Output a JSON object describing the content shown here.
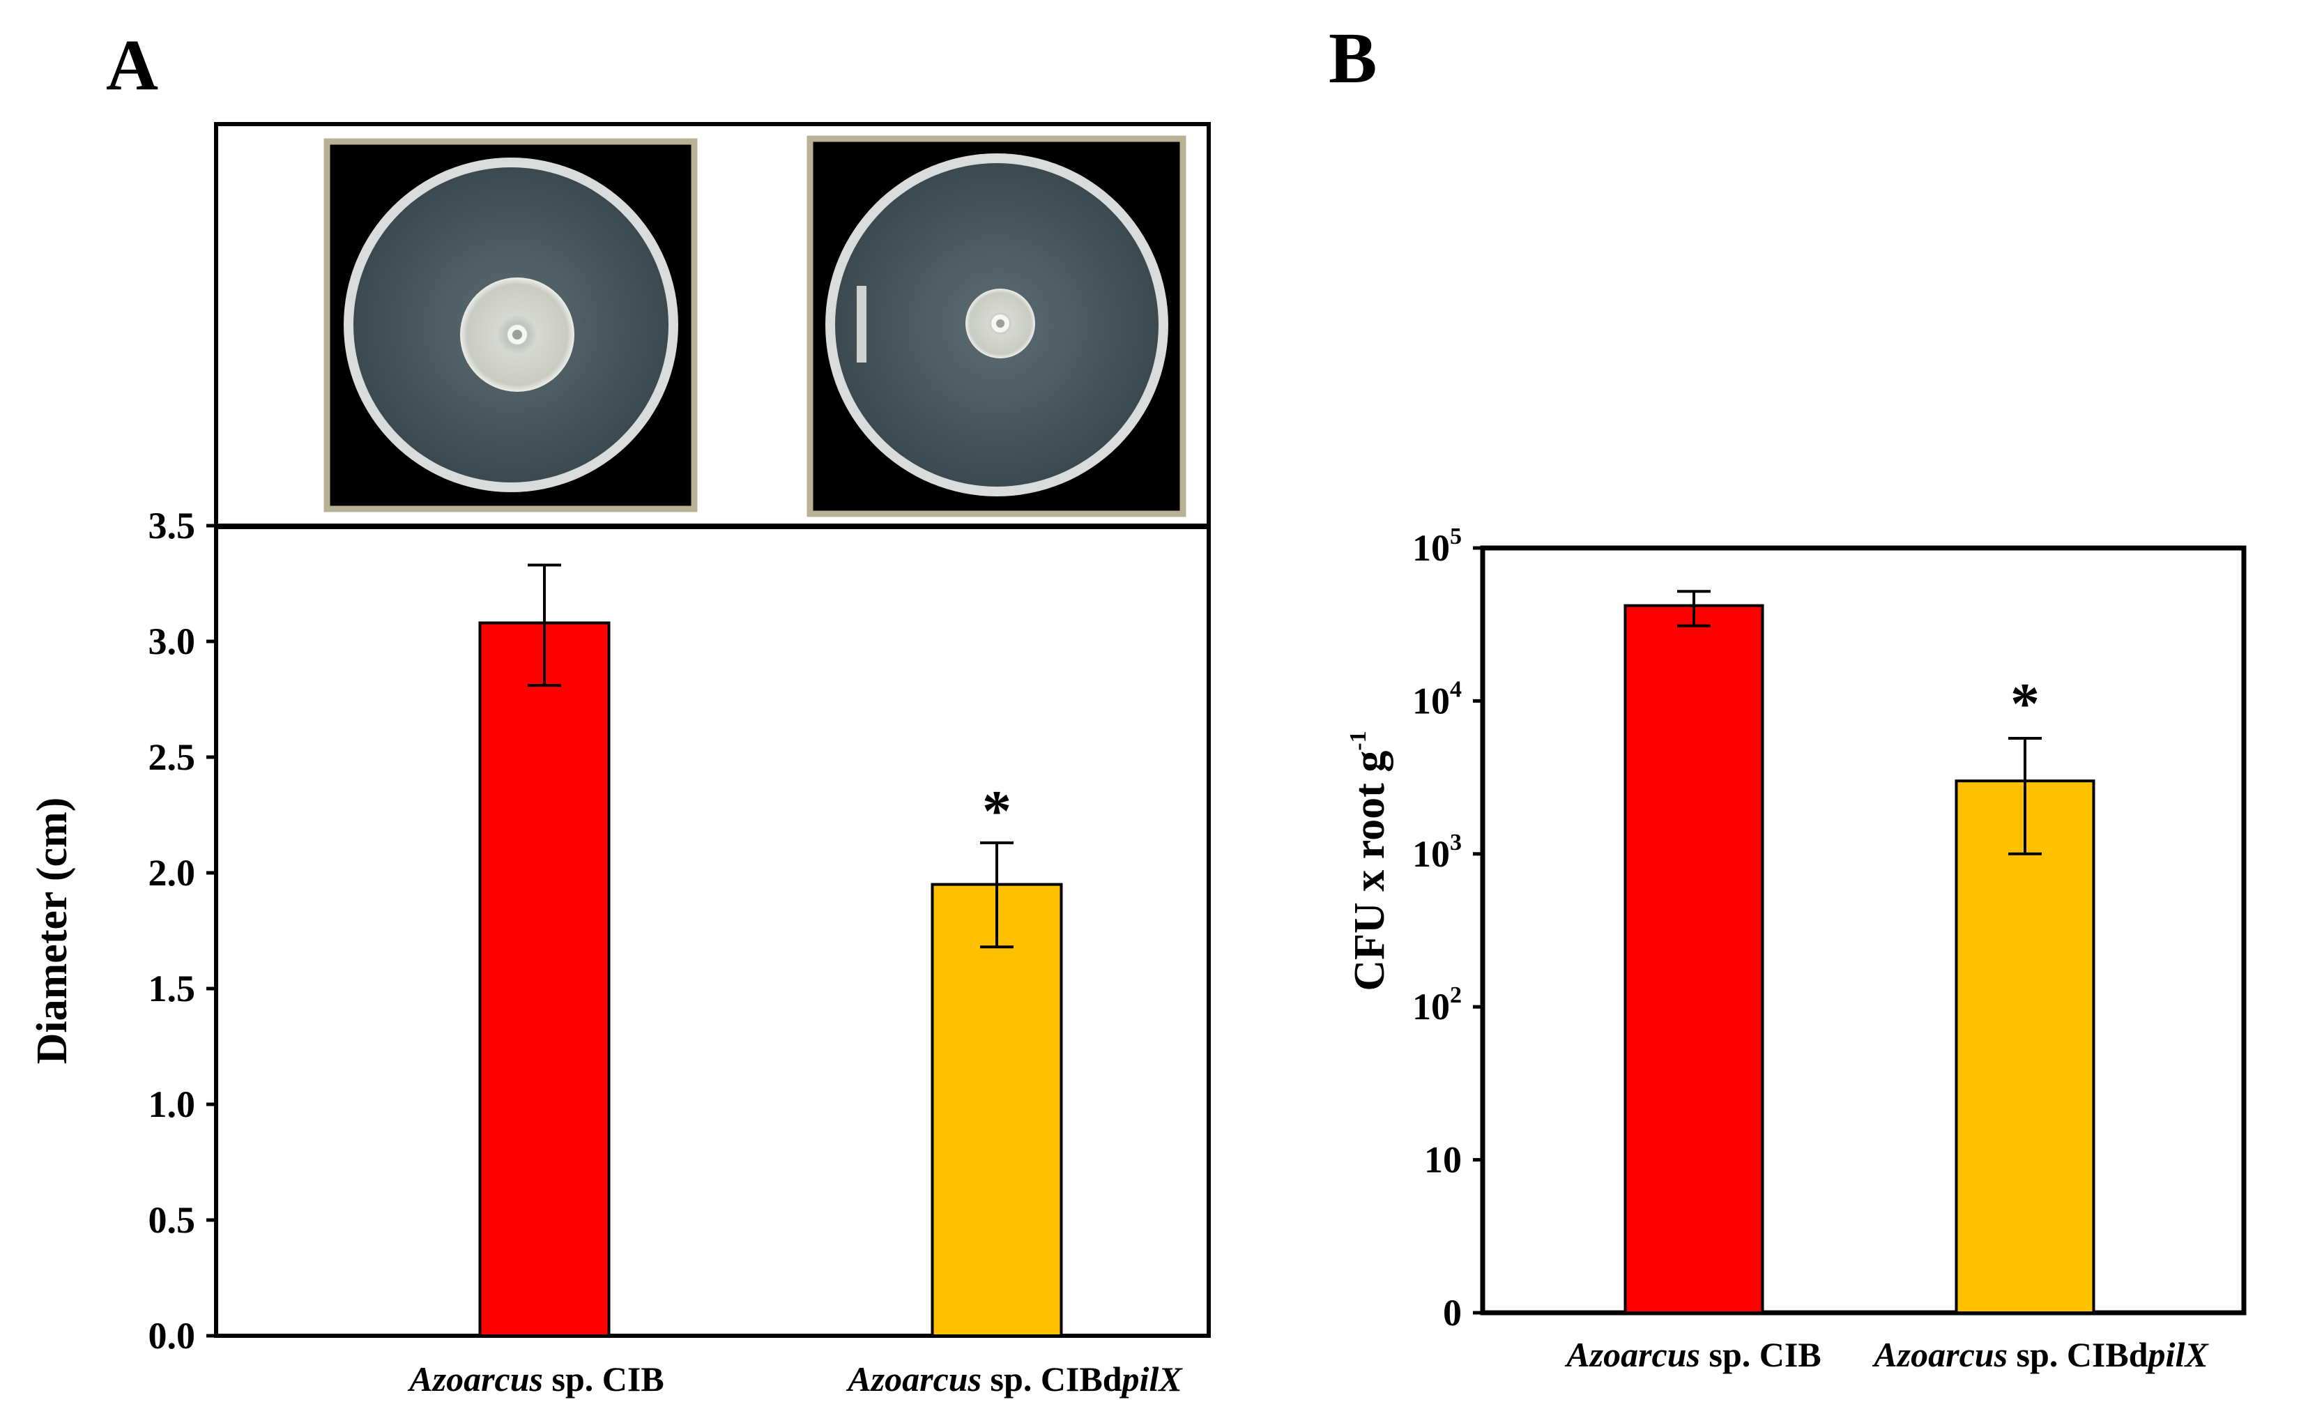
{
  "panels": {
    "a_letter": "A",
    "b_letter": "B"
  },
  "chart_data": [
    {
      "type": "bar",
      "panel": "A",
      "categories": [
        "Azoarcus sp. CIB",
        "Azoarcus sp. CIBdpilX"
      ],
      "category_labels": [
        {
          "italic": "Azoarcus",
          "rest": " sp. CIB",
          "rest_italic": ""
        },
        {
          "italic": "Azoarcus",
          "rest": " sp. CIBd",
          "rest_italic": "pilX"
        }
      ],
      "values": [
        3.08,
        1.95
      ],
      "error_plus": [
        0.25,
        0.18
      ],
      "error_minus": [
        0.27,
        0.27
      ],
      "significance": [
        "",
        "*"
      ],
      "colors": [
        "#ff0000",
        "#ffc000"
      ],
      "ylabel": "Diameter (cm)",
      "ylim": [
        0,
        3.5
      ],
      "yticks": [
        "0.0",
        "0.5",
        "1.0",
        "1.5",
        "2.0",
        "2.5",
        "3.0",
        "3.5"
      ],
      "scale": "linear",
      "grid": false,
      "inset": "two agar plate photographs showing swimming colonies above the bars"
    },
    {
      "type": "bar",
      "panel": "B",
      "categories": [
        "Azoarcus sp. CIB",
        "Azoarcus sp. CIBdpilX"
      ],
      "category_labels": [
        {
          "italic": "Azoarcus",
          "rest": " sp. CIB",
          "rest_italic": ""
        },
        {
          "italic": "Azoarcus",
          "rest": " sp. CIBd",
          "rest_italic": "pilX"
        }
      ],
      "values": [
        42000,
        3000
      ],
      "error_upper": [
        52000,
        5700
      ],
      "error_lower": [
        31000,
        1000
      ],
      "significance": [
        "",
        "*"
      ],
      "colors": [
        "#ff0000",
        "#ffc000"
      ],
      "ylabel": "CFU x root g",
      "ylabel_superscript": "-1",
      "ylim": [
        1,
        100000
      ],
      "yticks": [
        {
          "base": "0",
          "exp": ""
        },
        {
          "base": "10",
          "exp": ""
        },
        {
          "base": "10",
          "exp": "2"
        },
        {
          "base": "10",
          "exp": "3"
        },
        {
          "base": "10",
          "exp": "4"
        },
        {
          "base": "10",
          "exp": "5"
        }
      ],
      "scale": "log",
      "grid": false
    }
  ]
}
